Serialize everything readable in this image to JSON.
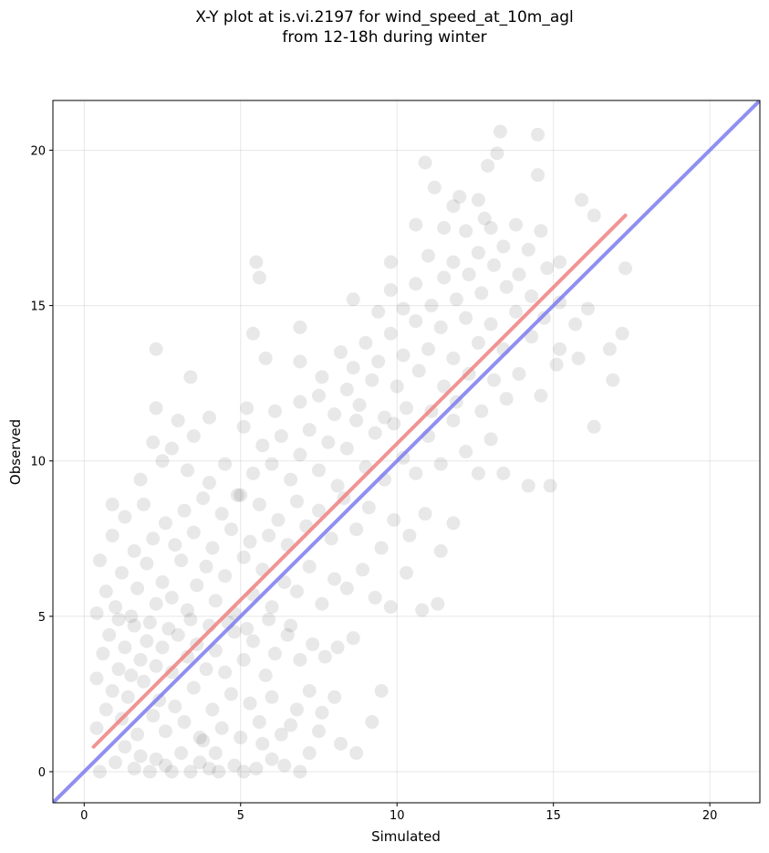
{
  "chart_data": {
    "type": "scatter",
    "title": "X-Y plot at is.vi.2197 for wind_speed_at_10m_agl",
    "subtitle": "from 12-18h during winter",
    "xlabel": "Simulated",
    "ylabel": "Observed",
    "xlim": [
      -1.0,
      21.6
    ],
    "ylim": [
      -1.0,
      21.6
    ],
    "xticks": [
      0,
      5,
      10,
      15,
      20
    ],
    "yticks": [
      0,
      5,
      10,
      15,
      20
    ],
    "grid": true,
    "colors": {
      "points": "#000000",
      "fit_line": "#f08080",
      "one_to_one": "#7b7bf0"
    },
    "one_to_one_line": {
      "x": [
        -1.0,
        21.6
      ],
      "y": [
        -1.0,
        21.6
      ]
    },
    "fit_line": {
      "x": [
        0.3,
        17.3
      ],
      "y": [
        0.8,
        17.9
      ]
    },
    "points": [
      [
        0.5,
        0.0
      ],
      [
        1.0,
        0.3
      ],
      [
        1.3,
        0.8
      ],
      [
        1.6,
        0.1
      ],
      [
        1.8,
        0.5
      ],
      [
        2.1,
        0.0
      ],
      [
        2.3,
        0.4
      ],
      [
        2.6,
        0.2
      ],
      [
        2.8,
        0.0
      ],
      [
        3.1,
        0.6
      ],
      [
        3.4,
        0.0
      ],
      [
        3.7,
        0.3
      ],
      [
        4.0,
        0.1
      ],
      [
        4.3,
        0.0
      ],
      [
        4.8,
        0.2
      ],
      [
        5.1,
        0.0
      ],
      [
        5.5,
        0.1
      ],
      [
        6.0,
        0.4
      ],
      [
        6.4,
        0.2
      ],
      [
        6.9,
        0.0
      ],
      [
        7.2,
        0.6
      ],
      [
        8.2,
        0.9
      ],
      [
        8.7,
        0.6
      ],
      [
        9.2,
        1.6
      ],
      [
        0.4,
        1.4
      ],
      [
        0.7,
        2.0
      ],
      [
        0.9,
        2.6
      ],
      [
        1.2,
        1.7
      ],
      [
        1.4,
        2.4
      ],
      [
        1.7,
        1.2
      ],
      [
        1.9,
        2.9
      ],
      [
        2.2,
        1.8
      ],
      [
        2.4,
        2.3
      ],
      [
        2.6,
        1.3
      ],
      [
        2.9,
        2.1
      ],
      [
        3.2,
        1.6
      ],
      [
        3.5,
        2.7
      ],
      [
        3.8,
        1.0
      ],
      [
        4.1,
        2.0
      ],
      [
        4.4,
        1.4
      ],
      [
        4.7,
        2.5
      ],
      [
        5.0,
        1.1
      ],
      [
        5.3,
        2.2
      ],
      [
        5.6,
        1.6
      ],
      [
        6.0,
        2.4
      ],
      [
        6.3,
        1.2
      ],
      [
        6.8,
        2.0
      ],
      [
        7.2,
        2.6
      ],
      [
        7.6,
        1.9
      ],
      [
        8.0,
        2.4
      ],
      [
        9.5,
        2.6
      ],
      [
        0.4,
        3.0
      ],
      [
        0.6,
        3.8
      ],
      [
        0.8,
        4.4
      ],
      [
        1.1,
        3.3
      ],
      [
        1.3,
        4.0
      ],
      [
        1.5,
        3.1
      ],
      [
        1.8,
        3.6
      ],
      [
        2.0,
        4.2
      ],
      [
        2.3,
        3.4
      ],
      [
        2.5,
        4.0
      ],
      [
        2.8,
        3.2
      ],
      [
        3.0,
        4.4
      ],
      [
        3.3,
        3.7
      ],
      [
        3.6,
        4.1
      ],
      [
        3.9,
        3.3
      ],
      [
        4.2,
        3.9
      ],
      [
        4.5,
        3.2
      ],
      [
        4.8,
        4.5
      ],
      [
        5.1,
        3.6
      ],
      [
        5.4,
        4.2
      ],
      [
        5.8,
        3.1
      ],
      [
        6.1,
        3.8
      ],
      [
        6.5,
        4.4
      ],
      [
        6.9,
        3.6
      ],
      [
        7.3,
        4.1
      ],
      [
        7.7,
        3.7
      ],
      [
        8.1,
        4.0
      ],
      [
        8.6,
        4.3
      ],
      [
        0.4,
        5.1
      ],
      [
        0.7,
        5.8
      ],
      [
        1.0,
        5.3
      ],
      [
        1.2,
        6.4
      ],
      [
        1.5,
        5.0
      ],
      [
        1.7,
        5.9
      ],
      [
        2.0,
        6.7
      ],
      [
        2.3,
        5.4
      ],
      [
        2.5,
        6.1
      ],
      [
        2.8,
        5.6
      ],
      [
        3.1,
        6.8
      ],
      [
        3.3,
        5.2
      ],
      [
        3.6,
        6.0
      ],
      [
        3.9,
        6.6
      ],
      [
        4.2,
        5.5
      ],
      [
        4.5,
        6.3
      ],
      [
        4.8,
        5.1
      ],
      [
        5.1,
        6.9
      ],
      [
        5.4,
        5.7
      ],
      [
        5.7,
        6.5
      ],
      [
        6.0,
        5.3
      ],
      [
        6.4,
        6.1
      ],
      [
        6.8,
        5.8
      ],
      [
        7.2,
        6.6
      ],
      [
        7.6,
        5.4
      ],
      [
        8.0,
        6.2
      ],
      [
        8.4,
        5.9
      ],
      [
        8.9,
        6.5
      ],
      [
        9.3,
        5.6
      ],
      [
        9.8,
        5.3
      ],
      [
        10.3,
        6.4
      ],
      [
        10.8,
        5.2
      ],
      [
        11.3,
        5.4
      ],
      [
        0.5,
        6.8
      ],
      [
        0.9,
        7.6
      ],
      [
        1.3,
        8.2
      ],
      [
        1.6,
        7.1
      ],
      [
        1.9,
        8.6
      ],
      [
        2.2,
        7.5
      ],
      [
        2.6,
        8.0
      ],
      [
        2.9,
        7.3
      ],
      [
        3.2,
        8.4
      ],
      [
        3.5,
        7.7
      ],
      [
        3.8,
        8.8
      ],
      [
        4.1,
        7.2
      ],
      [
        4.4,
        8.3
      ],
      [
        4.7,
        7.8
      ],
      [
        5.0,
        8.9
      ],
      [
        5.3,
        7.4
      ],
      [
        5.6,
        8.6
      ],
      [
        5.9,
        7.6
      ],
      [
        6.2,
        8.1
      ],
      [
        6.5,
        7.3
      ],
      [
        6.8,
        8.7
      ],
      [
        7.1,
        7.9
      ],
      [
        7.5,
        8.4
      ],
      [
        7.9,
        7.5
      ],
      [
        8.3,
        8.8
      ],
      [
        8.7,
        7.8
      ],
      [
        9.1,
        8.5
      ],
      [
        9.5,
        7.2
      ],
      [
        9.9,
        8.1
      ],
      [
        10.4,
        7.6
      ],
      [
        10.9,
        8.3
      ],
      [
        11.4,
        7.1
      ],
      [
        11.8,
        8.0
      ],
      [
        0.9,
        8.6
      ],
      [
        1.8,
        9.4
      ],
      [
        2.2,
        10.6
      ],
      [
        2.5,
        10.0
      ],
      [
        2.8,
        10.4
      ],
      [
        3.3,
        9.7
      ],
      [
        3.5,
        10.8
      ],
      [
        4.0,
        9.3
      ],
      [
        4.5,
        9.9
      ],
      [
        4.9,
        8.9
      ],
      [
        5.1,
        11.1
      ],
      [
        5.4,
        9.6
      ],
      [
        5.7,
        10.5
      ],
      [
        6.0,
        9.9
      ],
      [
        6.3,
        10.8
      ],
      [
        6.6,
        9.4
      ],
      [
        6.9,
        10.2
      ],
      [
        7.2,
        11.0
      ],
      [
        7.5,
        9.7
      ],
      [
        7.8,
        10.6
      ],
      [
        8.1,
        9.2
      ],
      [
        8.4,
        10.4
      ],
      [
        8.7,
        11.3
      ],
      [
        9.0,
        9.8
      ],
      [
        9.3,
        10.9
      ],
      [
        9.6,
        9.4
      ],
      [
        9.9,
        11.2
      ],
      [
        10.2,
        10.1
      ],
      [
        10.6,
        9.6
      ],
      [
        11.0,
        10.8
      ],
      [
        11.4,
        9.9
      ],
      [
        11.8,
        11.3
      ],
      [
        12.2,
        10.3
      ],
      [
        12.6,
        9.6
      ],
      [
        13.0,
        10.7
      ],
      [
        13.4,
        9.6
      ],
      [
        14.2,
        9.2
      ],
      [
        14.9,
        9.2
      ],
      [
        2.3,
        11.7
      ],
      [
        3.0,
        11.3
      ],
      [
        4.0,
        11.4
      ],
      [
        5.2,
        11.7
      ],
      [
        6.1,
        11.6
      ],
      [
        6.9,
        11.9
      ],
      [
        7.5,
        12.1
      ],
      [
        8.0,
        11.5
      ],
      [
        8.4,
        12.3
      ],
      [
        8.8,
        11.8
      ],
      [
        9.2,
        12.6
      ],
      [
        9.6,
        11.4
      ],
      [
        10.0,
        12.4
      ],
      [
        10.3,
        11.7
      ],
      [
        10.7,
        12.9
      ],
      [
        11.1,
        11.6
      ],
      [
        11.5,
        12.4
      ],
      [
        11.9,
        11.9
      ],
      [
        12.3,
        12.8
      ],
      [
        12.7,
        11.6
      ],
      [
        13.1,
        12.6
      ],
      [
        13.5,
        12.0
      ],
      [
        13.9,
        12.8
      ],
      [
        14.6,
        12.1
      ],
      [
        15.1,
        13.1
      ],
      [
        16.3,
        11.1
      ],
      [
        16.9,
        12.6
      ],
      [
        2.3,
        13.6
      ],
      [
        3.4,
        12.7
      ],
      [
        5.8,
        13.3
      ],
      [
        6.9,
        13.2
      ],
      [
        7.6,
        12.7
      ],
      [
        8.2,
        13.5
      ],
      [
        8.6,
        13.0
      ],
      [
        9.0,
        13.8
      ],
      [
        9.4,
        13.2
      ],
      [
        9.8,
        14.1
      ],
      [
        10.2,
        13.4
      ],
      [
        10.6,
        14.5
      ],
      [
        11.0,
        13.6
      ],
      [
        11.4,
        14.3
      ],
      [
        11.8,
        13.3
      ],
      [
        12.2,
        14.6
      ],
      [
        12.6,
        13.8
      ],
      [
        13.0,
        14.4
      ],
      [
        13.4,
        13.6
      ],
      [
        13.8,
        14.8
      ],
      [
        14.3,
        14.0
      ],
      [
        14.7,
        14.6
      ],
      [
        15.2,
        13.6
      ],
      [
        15.8,
        13.3
      ],
      [
        16.8,
        13.6
      ],
      [
        17.2,
        14.1
      ],
      [
        5.4,
        14.1
      ],
      [
        6.9,
        14.3
      ],
      [
        8.6,
        15.2
      ],
      [
        9.4,
        14.8
      ],
      [
        9.8,
        15.5
      ],
      [
        10.2,
        14.9
      ],
      [
        10.6,
        15.7
      ],
      [
        11.1,
        15.0
      ],
      [
        11.5,
        15.9
      ],
      [
        11.9,
        15.2
      ],
      [
        12.3,
        16.0
      ],
      [
        12.7,
        15.4
      ],
      [
        13.1,
        16.3
      ],
      [
        13.5,
        15.6
      ],
      [
        13.9,
        16.0
      ],
      [
        14.3,
        15.3
      ],
      [
        14.8,
        16.2
      ],
      [
        15.2,
        15.1
      ],
      [
        15.7,
        14.4
      ],
      [
        16.1,
        14.9
      ],
      [
        5.5,
        16.4
      ],
      [
        5.6,
        15.9
      ],
      [
        9.8,
        16.4
      ],
      [
        10.6,
        17.6
      ],
      [
        11.0,
        16.6
      ],
      [
        11.5,
        17.5
      ],
      [
        11.8,
        16.4
      ],
      [
        12.2,
        17.4
      ],
      [
        12.6,
        16.7
      ],
      [
        13.0,
        17.5
      ],
      [
        13.4,
        16.9
      ],
      [
        13.8,
        17.6
      ],
      [
        14.2,
        16.8
      ],
      [
        14.6,
        17.4
      ],
      [
        15.2,
        16.4
      ],
      [
        15.9,
        18.4
      ],
      [
        16.3,
        17.9
      ],
      [
        17.3,
        16.2
      ],
      [
        10.9,
        19.6
      ],
      [
        11.2,
        18.8
      ],
      [
        11.8,
        18.2
      ],
      [
        12.0,
        18.5
      ],
      [
        12.6,
        18.4
      ],
      [
        12.9,
        19.5
      ],
      [
        13.2,
        19.9
      ],
      [
        13.3,
        20.6
      ],
      [
        14.5,
        20.5
      ],
      [
        14.5,
        19.2
      ],
      [
        12.8,
        17.8
      ],
      [
        3.7,
        1.1
      ],
      [
        4.2,
        0.6
      ],
      [
        5.7,
        0.9
      ],
      [
        6.6,
        1.5
      ],
      [
        7.5,
        1.3
      ],
      [
        1.1,
        4.9
      ],
      [
        1.6,
        4.7
      ],
      [
        2.1,
        4.8
      ],
      [
        2.7,
        4.6
      ],
      [
        3.4,
        4.9
      ],
      [
        4.0,
        4.7
      ],
      [
        4.6,
        4.8
      ],
      [
        5.2,
        4.6
      ],
      [
        5.9,
        4.9
      ],
      [
        6.6,
        4.7
      ]
    ]
  }
}
